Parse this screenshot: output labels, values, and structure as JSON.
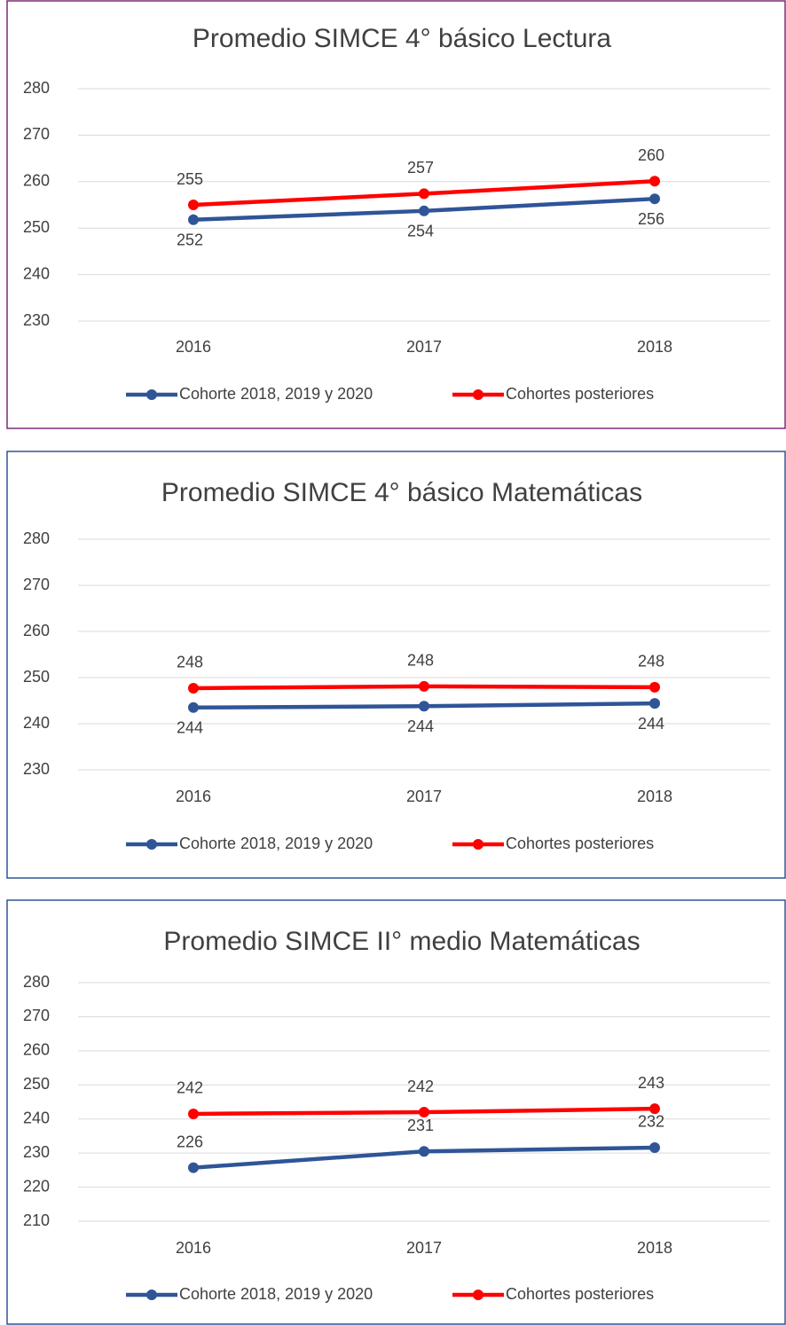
{
  "chart_data": [
    {
      "type": "line",
      "title": "Promedio SIMCE 4° básico Lectura",
      "x": [
        "2016",
        "2017",
        "2018"
      ],
      "series": [
        {
          "name": "Cohorte 2018, 2019 y 2020",
          "color": "#2f5597",
          "values": [
            251.8,
            253.7,
            256.3
          ],
          "value_labels": [
            "252",
            "254",
            "256"
          ]
        },
        {
          "name": "Cohortes posteriores",
          "color": "#ff0000",
          "values": [
            255.0,
            257.4,
            260.1
          ],
          "value_labels": [
            "255",
            "257",
            "260"
          ]
        }
      ],
      "ylim": [
        230,
        280
      ],
      "yticks": [
        230,
        240,
        250,
        260,
        270,
        280
      ],
      "grid": true,
      "legend": "bottom"
    },
    {
      "type": "line",
      "title": "Promedio SIMCE 4° básico Matemáticas",
      "x": [
        "2016",
        "2017",
        "2018"
      ],
      "series": [
        {
          "name": "Cohorte 2018, 2019 y 2020",
          "color": "#2f5597",
          "values": [
            243.5,
            243.8,
            244.4
          ],
          "value_labels": [
            "244",
            "244",
            "244"
          ]
        },
        {
          "name": "Cohortes posteriores",
          "color": "#ff0000",
          "values": [
            247.7,
            248.1,
            247.9
          ],
          "value_labels": [
            "248",
            "248",
            "248"
          ]
        }
      ],
      "ylim": [
        230,
        280
      ],
      "yticks": [
        230,
        240,
        250,
        260,
        270,
        280
      ],
      "grid": true,
      "legend": "bottom"
    },
    {
      "type": "line",
      "title": "Promedio SIMCE II° medio Matemáticas",
      "x": [
        "2016",
        "2017",
        "2018"
      ],
      "series": [
        {
          "name": "Cohorte 2018, 2019 y 2020",
          "color": "#2f5597",
          "values": [
            225.7,
            230.5,
            231.6
          ],
          "value_labels": [
            "226",
            "231",
            "232"
          ]
        },
        {
          "name": "Cohortes posteriores",
          "color": "#ff0000",
          "values": [
            241.5,
            242.0,
            243.0
          ],
          "value_labels": [
            "242",
            "242",
            "243"
          ]
        }
      ],
      "ylim": [
        210,
        280
      ],
      "yticks": [
        210,
        220,
        230,
        240,
        250,
        260,
        270,
        280
      ],
      "grid": true,
      "legend": "bottom"
    }
  ]
}
